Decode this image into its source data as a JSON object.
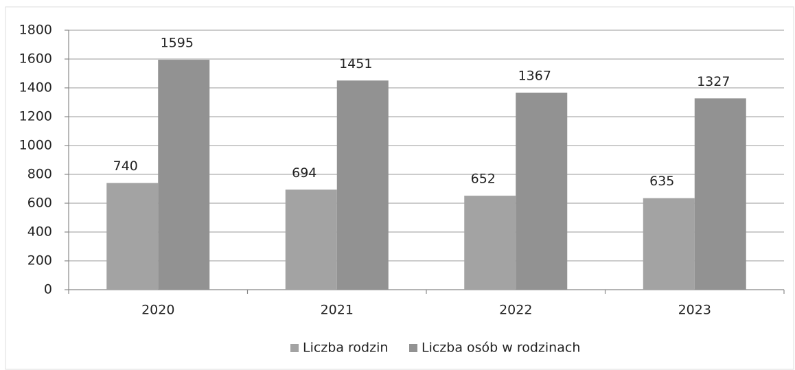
{
  "chart_data": {
    "type": "bar",
    "categories": [
      "2020",
      "2021",
      "2022",
      "2023"
    ],
    "series": [
      {
        "name": "Liczba rodzin",
        "color": "#a3a3a3",
        "values": [
          740,
          694,
          652,
          635
        ]
      },
      {
        "name": "Liczba osób w rodzinach",
        "color": "#929292",
        "values": [
          1595,
          1451,
          1367,
          1327
        ]
      }
    ],
    "ylim": [
      0,
      1800
    ],
    "yticks": [
      0,
      200,
      400,
      600,
      800,
      1000,
      1200,
      1400,
      1600,
      1800
    ],
    "grid": true,
    "legend": "bottom"
  }
}
